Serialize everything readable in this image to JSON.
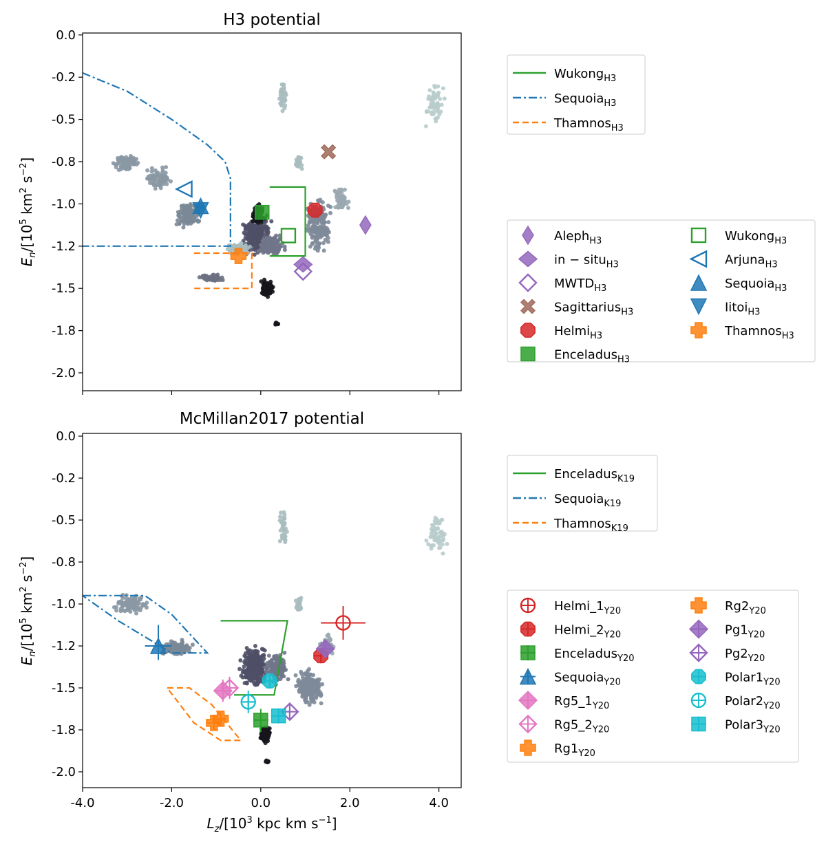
{
  "chart_data": [
    {
      "type": "scatter",
      "title": "H3 potential",
      "xlabel": "",
      "ylabel": "E_n /[10^5 km^2 s^-2]",
      "xlim": [
        -4.0,
        4.5
      ],
      "ylim": [
        -2.1,
        0.0
      ],
      "yticks": [
        0.0,
        -0.2,
        -0.5,
        -0.8,
        -1.0,
        -1.2,
        -1.5,
        -1.8,
        -2.0
      ],
      "ytick_labels": [
        "0.0",
        "-0.2",
        "-0.5",
        "-0.8",
        "-1.0",
        "-1.2",
        "-1.5",
        "-1.8",
        "-2.0"
      ],
      "xticks": [
        -4.0,
        -2.0,
        0.0,
        2.0,
        4.0
      ],
      "line_legend": [
        {
          "name": "Wukong",
          "sub": "H3",
          "color": "#2ca02c",
          "dash": "solid"
        },
        {
          "name": "Sequoia",
          "sub": "H3",
          "color": "#1f77b4",
          "dash": "dashdot"
        },
        {
          "name": "Thamnos",
          "sub": "H3",
          "color": "#ff7f0e",
          "dash": "dashed"
        }
      ],
      "marker_legend": [
        {
          "name": "Aleph",
          "sub": "H3",
          "color": "#9467bd",
          "marker": "thin-diamond",
          "x": 2.35,
          "y": -1.1
        },
        {
          "name": "in − situ",
          "sub": "H3",
          "color": "#9467bd",
          "marker": "diamond",
          "x": 0.95,
          "y": -1.33
        },
        {
          "name": "MWTD",
          "sub": "H3",
          "color": "#9467bd",
          "marker": "open-diamond",
          "x": 0.95,
          "y": -1.38
        },
        {
          "name": "Sagittarius",
          "sub": "H3",
          "color": "#a06a5a",
          "marker": "x-filled",
          "x": 1.52,
          "y": -0.73
        },
        {
          "name": "Helmi",
          "sub": "H3",
          "color": "#d62728",
          "marker": "octagon",
          "x": 1.22,
          "y": -1.03
        },
        {
          "name": "Enceladus",
          "sub": "H3",
          "color": "#2ca02c",
          "marker": "square",
          "x": 0.03,
          "y": -1.04
        },
        {
          "name": "Wukong",
          "sub": "H3",
          "color": "#2ca02c",
          "marker": "open-square",
          "x": 0.62,
          "y": -1.15
        },
        {
          "name": "Arjuna",
          "sub": "H3",
          "color": "#1f77b4",
          "marker": "open-triangle-left",
          "x": -1.72,
          "y": -0.93
        },
        {
          "name": "Sequoia",
          "sub": "H3",
          "color": "#1f77b4",
          "marker": "triangle-up",
          "x": -1.35,
          "y": -1.01
        },
        {
          "name": "Iitoi",
          "sub": "H3",
          "color": "#1f77b4",
          "marker": "triangle-down",
          "x": -1.35,
          "y": -1.03
        },
        {
          "name": "Thamnos",
          "sub": "H3",
          "color": "#ff7f0e",
          "marker": "plus-filled",
          "x": -0.5,
          "y": -1.27
        }
      ],
      "regions": [
        {
          "name": "Wukong",
          "color": "#2ca02c",
          "dash": "solid",
          "points": [
            [
              0.2,
              -0.92
            ],
            [
              1.0,
              -0.92
            ],
            [
              1.0,
              -1.27
            ],
            [
              0.2,
              -1.27
            ]
          ]
        },
        {
          "name": "Sequoia",
          "color": "#1f77b4",
          "dash": "dashdot",
          "points": [
            [
              -4.0,
              -0.18
            ],
            [
              -3.0,
              -0.3
            ],
            [
              -2.0,
              -0.5
            ],
            [
              -1.2,
              -0.68
            ],
            [
              -0.8,
              -0.8
            ],
            [
              -0.68,
              -0.88
            ],
            [
              -0.68,
              -1.2
            ],
            [
              -4.0,
              -1.2
            ]
          ]
        },
        {
          "name": "Thamnos",
          "color": "#ff7f0e",
          "dash": "dashed",
          "points": [
            [
              -1.5,
              -1.25
            ],
            [
              -0.2,
              -1.25
            ],
            [
              -0.2,
              -1.5
            ],
            [
              -1.5,
              -1.5
            ]
          ]
        }
      ]
    },
    {
      "type": "scatter",
      "title": "McMillan2017 potential",
      "xlabel": "L_z /[10^3 kpc km s^-1]",
      "ylabel": "E_n /[10^5 km^2 s^-2]",
      "xlim": [
        -4.0,
        4.5
      ],
      "ylim": [
        -2.1,
        0.0
      ],
      "yticks": [
        0.0,
        -0.2,
        -0.5,
        -0.8,
        -1.0,
        -1.2,
        -1.5,
        -1.8,
        -2.0
      ],
      "ytick_labels": [
        "0.0",
        "-0.2",
        "-0.5",
        "-0.8",
        "-1.0",
        "-1.2",
        "-1.5",
        "-1.8",
        "-2.0"
      ],
      "xticks": [
        -4.0,
        -2.0,
        0.0,
        2.0,
        4.0
      ],
      "xtick_labels": [
        "-4.0",
        "-2.0",
        "0.0",
        "2.0",
        "4.0"
      ],
      "line_legend": [
        {
          "name": "Enceladus",
          "sub": "K19",
          "color": "#2ca02c",
          "dash": "solid"
        },
        {
          "name": "Sequoia",
          "sub": "K19",
          "color": "#1f77b4",
          "dash": "dashdot"
        },
        {
          "name": "Thamnos",
          "sub": "K19",
          "color": "#ff7f0e",
          "dash": "dashed"
        }
      ],
      "marker_legend": [
        {
          "name": "Helmi_1",
          "sub": "Y20",
          "color": "#d62728",
          "marker": "open-circle-plus",
          "x": 1.85,
          "y": -1.09,
          "xerr": 0.5,
          "yerr": 0.08
        },
        {
          "name": "Helmi_2",
          "sub": "Y20",
          "color": "#d62728",
          "marker": "octagon-plus",
          "x": 1.35,
          "y": -1.27,
          "xerr": 0.12,
          "yerr": 0.05
        },
        {
          "name": "Enceladus",
          "sub": "Y20",
          "color": "#2ca02c",
          "marker": "square-plus",
          "x": 0.0,
          "y": -1.73,
          "xerr": 0.15,
          "yerr": 0.08
        },
        {
          "name": "Sequoia",
          "sub": "Y20",
          "color": "#1f77b4",
          "marker": "triangle-plus",
          "x": -2.3,
          "y": -1.2,
          "xerr": 0.3,
          "yerr": 0.1
        },
        {
          "name": "Rg5_1",
          "sub": "Y20",
          "color": "#e377c2",
          "marker": "diamond-plus",
          "x": -0.85,
          "y": -1.52,
          "xerr": 0.12,
          "yerr": 0.08
        },
        {
          "name": "Rg5_2",
          "sub": "Y20",
          "color": "#e377c2",
          "marker": "open-diamond-plus",
          "x": -0.7,
          "y": -1.5,
          "xerr": 0.12,
          "yerr": 0.08
        },
        {
          "name": "Rg1",
          "sub": "Y20",
          "color": "#ff7f0e",
          "marker": "plus-filled",
          "x": -1.05,
          "y": -1.75,
          "xerr": 0.15,
          "yerr": 0.05
        },
        {
          "name": "Rg2",
          "sub": "Y20",
          "color": "#ff7f0e",
          "marker": "plus-filled",
          "x": -0.9,
          "y": -1.72,
          "xerr": 0.12,
          "yerr": 0.05
        },
        {
          "name": "Pg1",
          "sub": "Y20",
          "color": "#9467bd",
          "marker": "diamond-plus",
          "x": 1.45,
          "y": -1.22,
          "xerr": 0.1,
          "yerr": 0.05
        },
        {
          "name": "Pg2",
          "sub": "Y20",
          "color": "#9467bd",
          "marker": "open-diamond-plus",
          "x": 0.65,
          "y": -1.67,
          "xerr": 0.1,
          "yerr": 0.05
        },
        {
          "name": "Polar1",
          "sub": "Y20",
          "color": "#17becf",
          "marker": "octagon-plus",
          "x": 0.2,
          "y": -1.45,
          "xerr": 0.1,
          "yerr": 0.05
        },
        {
          "name": "Polar2",
          "sub": "Y20",
          "color": "#17becf",
          "marker": "open-circle-plus",
          "x": -0.28,
          "y": -1.6,
          "xerr": 0.15,
          "yerr": 0.08
        },
        {
          "name": "Polar3",
          "sub": "Y20",
          "color": "#17becf",
          "marker": "square-plus",
          "x": 0.4,
          "y": -1.7,
          "xerr": 0.12,
          "yerr": 0.05
        }
      ],
      "regions": [
        {
          "name": "Enceladus",
          "color": "#2ca02c",
          "dash": "solid",
          "points": [
            [
              -0.9,
              -1.08
            ],
            [
              0.6,
              -1.08
            ],
            [
              0.3,
              -1.55
            ],
            [
              -0.6,
              -1.55
            ]
          ]
        },
        {
          "name": "Sequoia",
          "color": "#1f77b4",
          "dash": "dashdot",
          "points": [
            [
              -4.0,
              -0.96
            ],
            [
              -2.6,
              -0.96
            ],
            [
              -2.0,
              -1.05
            ],
            [
              -1.2,
              -1.25
            ],
            [
              -2.0,
              -1.25
            ],
            [
              -3.2,
              -1.08
            ],
            [
              -4.0,
              -0.96
            ]
          ]
        },
        {
          "name": "Thamnos",
          "color": "#ff7f0e",
          "dash": "dashed",
          "points": [
            [
              -2.1,
              -1.5
            ],
            [
              -1.6,
              -1.5
            ],
            [
              -1.1,
              -1.62
            ],
            [
              -0.45,
              -1.85
            ],
            [
              -0.9,
              -1.85
            ],
            [
              -1.5,
              -1.75
            ],
            [
              -2.1,
              -1.5
            ]
          ]
        }
      ]
    }
  ]
}
